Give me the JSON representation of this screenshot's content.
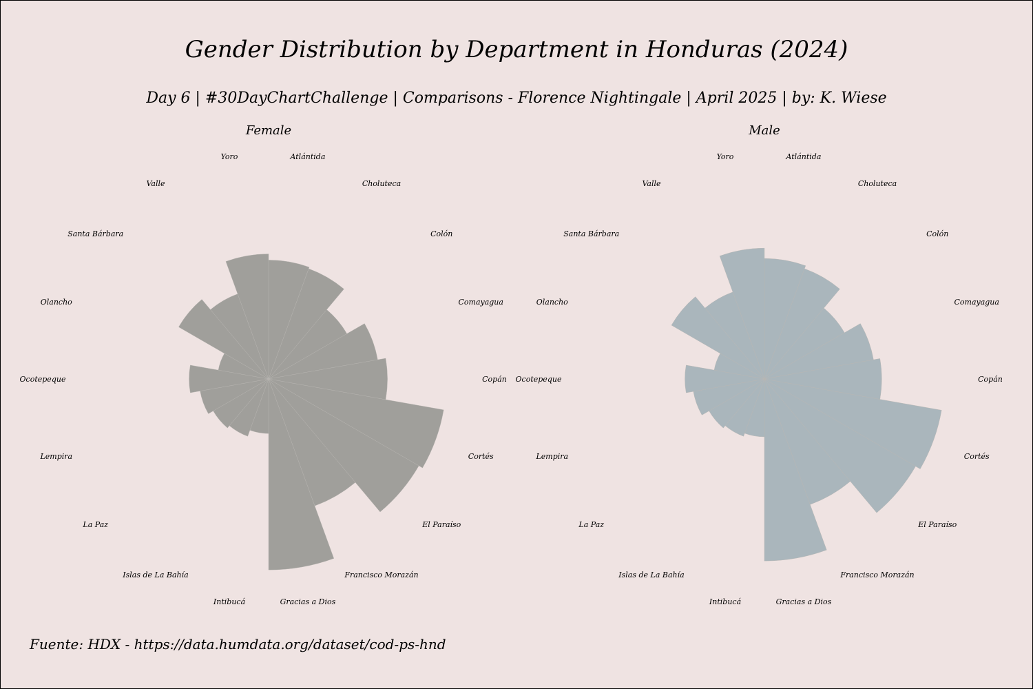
{
  "title": "Gender Distribution by Department in Honduras (2024)",
  "subtitle": "Day 6 | #30DayChartChallenge | Comparisons - Florence Nightingale | April 2025 | by: K. Wiese",
  "caption": "Fuente: HDX - https://data.humdata.org/dataset/cod-ps-hnd",
  "colors": {
    "background": "#efe3e2",
    "female": "#a09f9b",
    "male": "#aab6bc"
  },
  "chart_data": [
    {
      "type": "polar-bar",
      "facet": "Female",
      "color": "#a09f9b",
      "categories": [
        "Atlántida",
        "Choluteca",
        "Colón",
        "Comayagua",
        "Copán",
        "Cortés",
        "El Paraíso",
        "Francisco Morazán",
        "Gracias a Dios",
        "Intibucá",
        "Islas de La Bahía",
        "La Paz",
        "Lempira",
        "Ocotepeque",
        "Olancho",
        "Santa Bárbara",
        "Valle",
        "Yoro"
      ],
      "values": [
        0.38,
        0.37,
        0.22,
        0.33,
        0.38,
        0.85,
        0.81,
        0.49,
        0.98,
        0.08,
        0.1,
        0.11,
        0.13,
        0.17,
        0.07,
        0.29,
        0.22,
        0.42
      ],
      "grid": false,
      "axis_text": false
    },
    {
      "type": "polar-bar",
      "facet": "Male",
      "color": "#aab6bc",
      "categories": [
        "Atlántida",
        "Choluteca",
        "Colón",
        "Comayagua",
        "Copán",
        "Cortés",
        "El Paraíso",
        "Francisco Morazán",
        "Gracias a Dios",
        "Intibucá",
        "Islas de La Bahía",
        "La Paz",
        "Lempira",
        "Ocotepeque",
        "Olancho",
        "Santa Bárbara",
        "Valle",
        "Yoro"
      ],
      "values": [
        0.39,
        0.37,
        0.23,
        0.33,
        0.37,
        0.87,
        0.82,
        0.48,
        0.89,
        0.09,
        0.1,
        0.11,
        0.14,
        0.17,
        0.07,
        0.31,
        0.23,
        0.46
      ],
      "grid": false,
      "axis_text": false
    }
  ]
}
